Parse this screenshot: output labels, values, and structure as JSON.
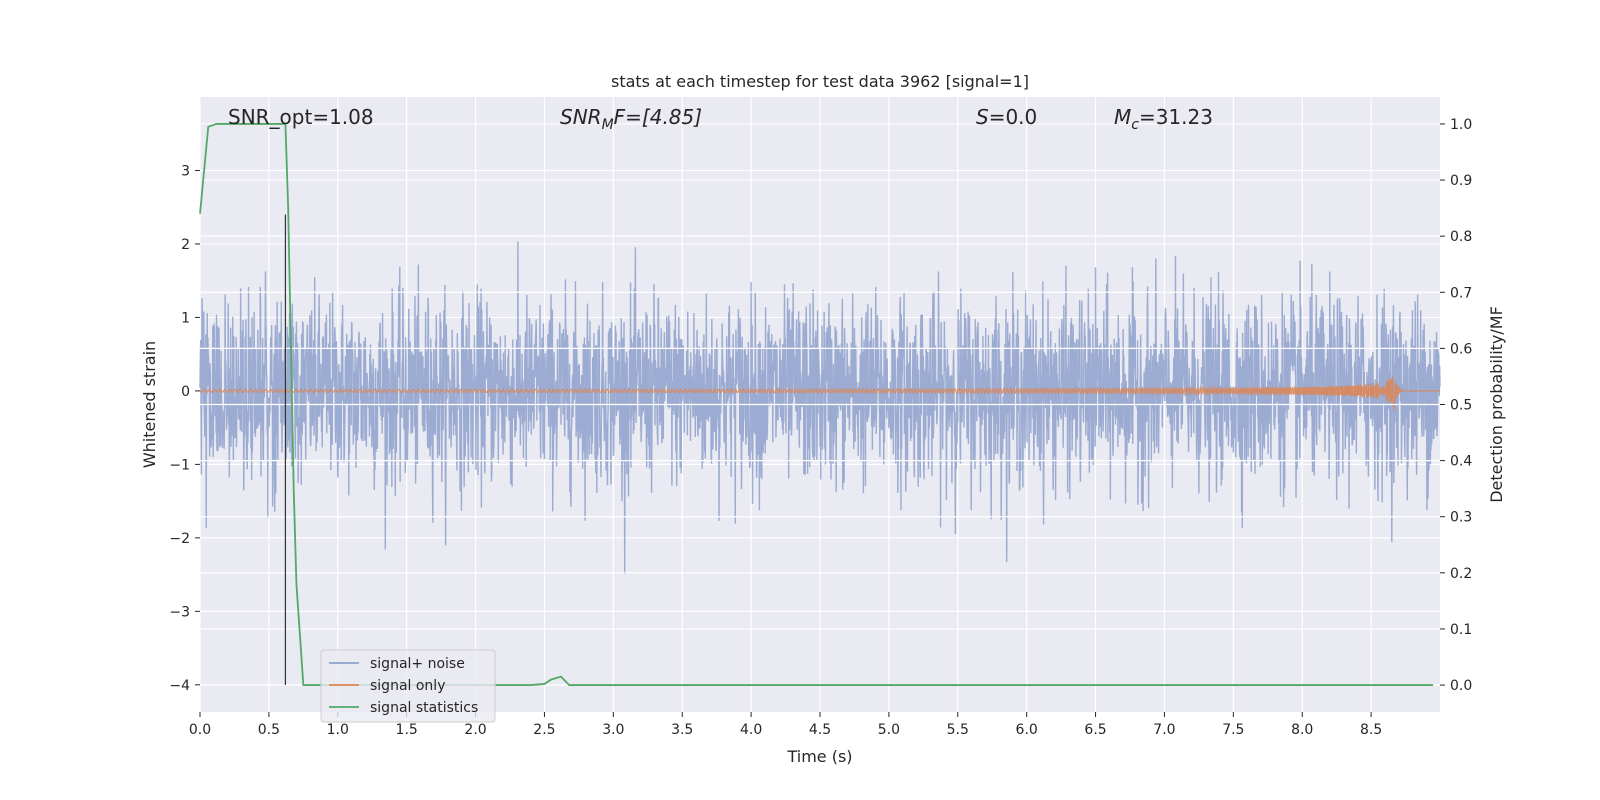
{
  "chart_data": {
    "type": "line",
    "title": "stats at each timestep for test data 3962 [signal=1]",
    "xlabel": "Time (s)",
    "ylabel": "Whitened strain",
    "ylabel_right": "Detection probability/MF",
    "xlim": [
      0,
      9.0
    ],
    "ylim": [
      -4.37,
      4.0
    ],
    "ylim_right": [
      -0.048,
      1.048
    ],
    "x_ticks": [
      0.0,
      0.5,
      1.0,
      1.5,
      2.0,
      2.5,
      3.0,
      3.5,
      4.0,
      4.5,
      5.0,
      5.5,
      6.0,
      6.5,
      7.0,
      7.5,
      8.0,
      8.5
    ],
    "x_tick_labels": [
      "0.0",
      "0.5",
      "1.0",
      "1.5",
      "2.0",
      "2.5",
      "3.0",
      "3.5",
      "4.0",
      "4.5",
      "5.0",
      "5.5",
      "6.0",
      "6.5",
      "7.0",
      "7.5",
      "8.0",
      "8.5"
    ],
    "y_ticks": [
      -4,
      -3,
      -2,
      -1,
      0,
      1,
      2,
      3
    ],
    "y_tick_labels": [
      "−4",
      "−3",
      "−2",
      "−1",
      "0",
      "1",
      "2",
      "3"
    ],
    "y_ticks_right": [
      0.0,
      0.1,
      0.2,
      0.3,
      0.4,
      0.5,
      0.6,
      0.7,
      0.8,
      0.9,
      1.0
    ],
    "y_tick_labels_right": [
      "0.0",
      "0.1",
      "0.2",
      "0.3",
      "0.4",
      "0.5",
      "0.6",
      "0.7",
      "0.8",
      "0.9",
      "1.0"
    ],
    "grid": true,
    "legend_position": "bottom-left",
    "annotations": {
      "snr_opt": "SNR_opt=1.08",
      "snr_mf_base": "SNR",
      "snr_mf_sub": "M",
      "snr_mf_rest": "F=[4.85]",
      "s_var": "S",
      "s_rest": "=0.0",
      "mc_base": "M",
      "mc_sub": "c",
      "mc_rest": "=31.23"
    },
    "vertical_line_x": 0.62,
    "series": [
      {
        "name": "signal+ noise",
        "color": "#8da0cb",
        "axis": "left",
        "noise_std": 0.62,
        "x_range": [
          0,
          9.0
        ]
      },
      {
        "name": "signal only",
        "color": "#dd8452",
        "axis": "left",
        "chirp_end_x": 8.67,
        "chirp_peak_amplitude": 0.28
      },
      {
        "name": "signal statistics",
        "color": "#55a868",
        "axis": "right",
        "x": [
          0.0,
          0.06,
          0.12,
          0.2,
          0.3,
          0.4,
          0.5,
          0.6,
          0.62,
          0.64,
          0.66,
          0.68,
          0.7,
          0.75,
          0.8,
          1.0,
          1.5,
          2.0,
          2.4,
          2.5,
          2.55,
          2.62,
          2.68,
          2.75,
          3.0,
          4.0,
          5.0,
          6.0,
          7.0,
          8.0,
          8.95
        ],
        "y": [
          0.84,
          0.995,
          1.0,
          1.0,
          1.0,
          1.0,
          1.0,
          1.0,
          1.0,
          0.85,
          0.6,
          0.35,
          0.18,
          0.0,
          0.0,
          0.0,
          0.0,
          0.0,
          0.0,
          0.002,
          0.01,
          0.015,
          0.0,
          0.0,
          0.0,
          0.0,
          0.0,
          0.0,
          0.0,
          0.0,
          0.0
        ]
      }
    ]
  }
}
